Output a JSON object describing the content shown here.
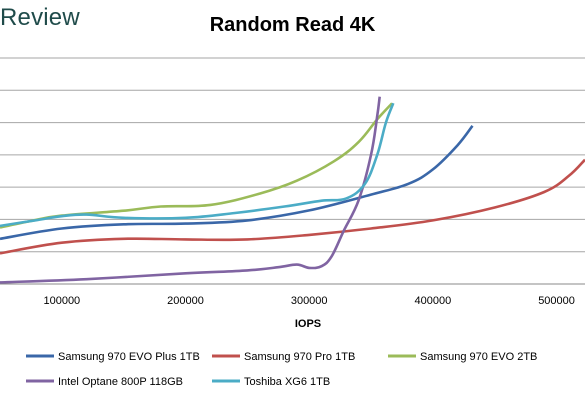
{
  "brand": {
    "text": "Review"
  },
  "chart_data": {
    "type": "line",
    "title": "Random Read 4K",
    "xlabel": "IOPS",
    "ylabel": "",
    "xlim": [
      50000,
      523000
    ],
    "ylim": [
      0,
      7
    ],
    "x_ticks": [
      100000,
      200000,
      300000,
      400000,
      500000
    ],
    "x_tick_labels": [
      "100000",
      "200000",
      "300000",
      "400000",
      "500000"
    ],
    "grid": "horizontal",
    "legend_position": "bottom",
    "series": [
      {
        "name": "Samsung 970 EVO Plus 1TB",
        "color": "#3a67a8",
        "points": [
          [
            50000,
            1.4
          ],
          [
            100000,
            1.72
          ],
          [
            150000,
            1.85
          ],
          [
            200000,
            1.87
          ],
          [
            250000,
            1.97
          ],
          [
            300000,
            2.28
          ],
          [
            350000,
            2.77
          ],
          [
            380000,
            3.1
          ],
          [
            400000,
            3.55
          ],
          [
            420000,
            4.3
          ],
          [
            432000,
            4.9
          ]
        ]
      },
      {
        "name": "Samsung 970 Pro 1TB",
        "color": "#c0504d",
        "points": [
          [
            50000,
            0.95
          ],
          [
            100000,
            1.28
          ],
          [
            150000,
            1.4
          ],
          [
            200000,
            1.38
          ],
          [
            250000,
            1.38
          ],
          [
            300000,
            1.52
          ],
          [
            350000,
            1.72
          ],
          [
            400000,
            1.97
          ],
          [
            450000,
            2.37
          ],
          [
            490000,
            2.85
          ],
          [
            510000,
            3.35
          ],
          [
            523000,
            3.85
          ]
        ]
      },
      {
        "name": "Samsung 970 EVO 2TB",
        "color": "#9bbb59",
        "points": [
          [
            50000,
            1.75
          ],
          [
            75000,
            1.95
          ],
          [
            100000,
            2.12
          ],
          [
            150000,
            2.27
          ],
          [
            180000,
            2.4
          ],
          [
            220000,
            2.45
          ],
          [
            260000,
            2.8
          ],
          [
            290000,
            3.2
          ],
          [
            320000,
            3.8
          ],
          [
            340000,
            4.4
          ],
          [
            355000,
            5.1
          ],
          [
            367000,
            5.6
          ]
        ]
      },
      {
        "name": "Intel Optane 800P 118GB",
        "color": "#8064a2",
        "points": [
          [
            50000,
            0.05
          ],
          [
            120000,
            0.15
          ],
          [
            200000,
            0.33
          ],
          [
            250000,
            0.42
          ],
          [
            275000,
            0.52
          ],
          [
            290000,
            0.6
          ],
          [
            300000,
            0.5
          ],
          [
            310000,
            0.55
          ],
          [
            318000,
            0.85
          ],
          [
            328000,
            1.65
          ],
          [
            340000,
            2.6
          ],
          [
            350000,
            4.0
          ],
          [
            355000,
            5.2
          ],
          [
            357000,
            5.8
          ]
        ]
      },
      {
        "name": "Toshiba XG6 1TB",
        "color": "#4bacc6",
        "points": [
          [
            50000,
            1.8
          ],
          [
            80000,
            1.98
          ],
          [
            100000,
            2.1
          ],
          [
            120000,
            2.15
          ],
          [
            150000,
            2.05
          ],
          [
            200000,
            2.05
          ],
          [
            240000,
            2.2
          ],
          [
            280000,
            2.4
          ],
          [
            310000,
            2.58
          ],
          [
            330000,
            2.65
          ],
          [
            345000,
            3.1
          ],
          [
            355000,
            4.0
          ],
          [
            362000,
            5.0
          ],
          [
            368000,
            5.6
          ]
        ]
      }
    ]
  }
}
